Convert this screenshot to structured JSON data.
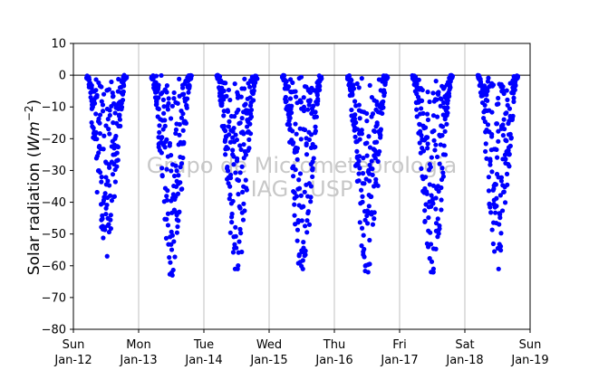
{
  "chart_data": {
    "type": "scatter",
    "title": "",
    "xlabel": "",
    "ylabel": "Solar radiation (Wm^{-2})",
    "ylabel_parts": {
      "main": "Solar radiation (",
      "italic": "Wm",
      "sup": "−2",
      "close": ")"
    },
    "ylim": [
      -80,
      10
    ],
    "xlim": [
      0,
      7
    ],
    "yticks": [
      10,
      0,
      -10,
      -20,
      -30,
      -40,
      -50,
      -60,
      -70,
      -80
    ],
    "ytick_labels": [
      "10",
      "0",
      "−10",
      "−20",
      "−30",
      "−40",
      "−50",
      "−60",
      "−70",
      "−80"
    ],
    "xticks": [
      0,
      1,
      2,
      3,
      4,
      5,
      6,
      7
    ],
    "xtick_labels": [
      {
        "day": "Sun",
        "date": "Jan-12"
      },
      {
        "day": "Mon",
        "date": "Jan-13"
      },
      {
        "day": "Tue",
        "date": "Jan-14"
      },
      {
        "day": "Wed",
        "date": "Jan-15"
      },
      {
        "day": "Thu",
        "date": "Jan-16"
      },
      {
        "day": "Fri",
        "date": "Jan-17"
      },
      {
        "day": "Sat",
        "date": "Jan-18"
      },
      {
        "day": "Sun",
        "date": "Jan-19"
      }
    ],
    "grid": "vertical",
    "zero_line": true,
    "marker_color": "#0000ff",
    "days": [
      {
        "start": 0.2,
        "end": 0.81,
        "min": -57
      },
      {
        "start": 1.2,
        "end": 1.81,
        "min": -63
      },
      {
        "start": 2.2,
        "end": 2.81,
        "min": -61
      },
      {
        "start": 3.2,
        "end": 3.81,
        "min": -61
      },
      {
        "start": 4.2,
        "end": 4.81,
        "min": -62
      },
      {
        "start": 5.2,
        "end": 5.81,
        "min": -62
      },
      {
        "start": 6.2,
        "end": 6.81,
        "min": -61
      }
    ],
    "watermark": [
      "Grupo de Micrometeorologia",
      "IAG - USP"
    ]
  }
}
